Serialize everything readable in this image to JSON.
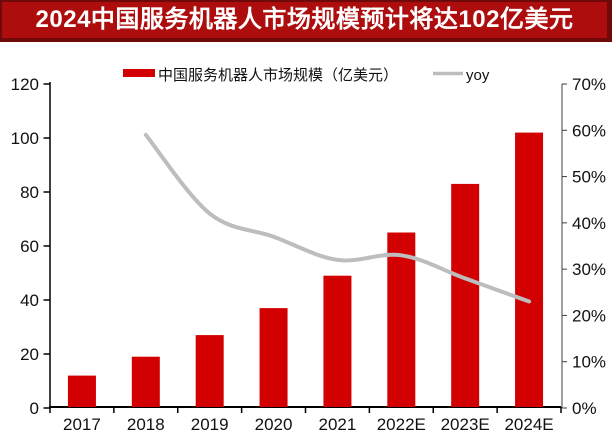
{
  "banner": {
    "title": "2024中国服务机器人市场规模预计将达102亿美元"
  },
  "colors": {
    "banner_bg": "#ad0d0d",
    "banner_border": "#6f0a0a",
    "bar_red": "#d20000",
    "line_gray": "#bdbdbd",
    "axis_black": "#000000",
    "right_axis_gray": "#3f3f3f",
    "text_black": "#111111"
  },
  "legend": {
    "items": [
      {
        "label": "中国服务机器人市场规模（亿美元）",
        "type": "bar",
        "color": "#d20000"
      },
      {
        "label": "yoy",
        "type": "line",
        "color": "#bdbdbd"
      }
    ]
  },
  "chart_data": {
    "type": "bar+line combo",
    "title": "2024中国服务机器人市场规模预计将达102亿美元",
    "categories": [
      "2017",
      "2018",
      "2019",
      "2020",
      "2021",
      "2022E",
      "2023E",
      "2024E"
    ],
    "series": [
      {
        "name": "中国服务机器人市场规模（亿美元）",
        "type": "bar",
        "axis": "left",
        "color": "#d20000",
        "values": [
          12,
          19,
          27,
          37,
          49,
          65,
          83,
          102
        ]
      },
      {
        "name": "yoy",
        "type": "line",
        "axis": "right",
        "color": "#bdbdbd",
        "values": [
          null,
          59,
          42,
          37,
          32,
          33,
          28,
          23
        ],
        "unit": "%"
      }
    ],
    "left_axis": {
      "min": 0,
      "max": 120,
      "step": 20,
      "tick_labels": [
        "0",
        "20",
        "40",
        "60",
        "80",
        "100",
        "120"
      ]
    },
    "right_axis": {
      "min": 0,
      "max": 70,
      "step": 10,
      "tick_labels": [
        "0%",
        "10%",
        "20%",
        "30%",
        "40%",
        "50%",
        "60%",
        "70%"
      ]
    },
    "grid": false,
    "legend_position": "top"
  }
}
